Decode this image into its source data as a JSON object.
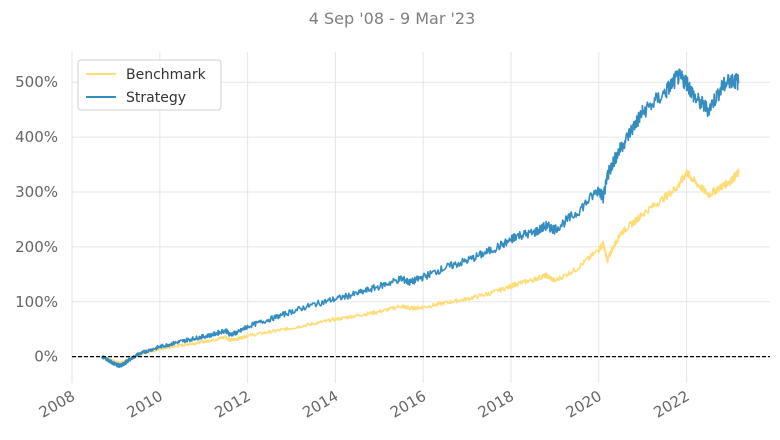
{
  "chart_data": {
    "type": "line",
    "subtitle": "4 Sep '08 -  9 Mar '23",
    "xlabel": "",
    "ylabel": "",
    "xlim": [
      2008.0,
      2023.9
    ],
    "ylim": [
      -48,
      555
    ],
    "y_ticks": [
      0,
      100,
      200,
      300,
      400,
      500
    ],
    "y_tick_labels": [
      "0%",
      "100%",
      "200%",
      "300%",
      "400%",
      "500%"
    ],
    "x_ticks": [
      2008,
      2010,
      2012,
      2014,
      2016,
      2018,
      2020,
      2022
    ],
    "x_tick_labels": [
      "2008",
      "2010",
      "2012",
      "2014",
      "2016",
      "2018",
      "2020",
      "2022"
    ],
    "grid": true,
    "legend_position": "top-left",
    "reference_line": {
      "y": 0,
      "style": "dashed",
      "color": "#000000"
    },
    "series": [
      {
        "name": "Benchmark",
        "color": "#fedd78",
        "x": [
          2008.68,
          2008.8,
          2008.9,
          2009.0,
          2009.1,
          2009.2,
          2009.3,
          2009.5,
          2009.7,
          2010.0,
          2010.3,
          2010.6,
          2010.9,
          2011.2,
          2011.5,
          2011.6,
          2011.8,
          2012.0,
          2012.5,
          2013.0,
          2013.5,
          2014.0,
          2014.5,
          2015.0,
          2015.5,
          2015.7,
          2016.0,
          2016.5,
          2017.0,
          2017.5,
          2018.0,
          2018.1,
          2018.5,
          2018.8,
          2019.0,
          2019.5,
          2020.0,
          2020.1,
          2020.2,
          2020.3,
          2020.5,
          2020.8,
          2021.0,
          2021.5,
          2021.8,
          2022.0,
          2022.2,
          2022.5,
          2022.8,
          2023.0,
          2023.19
        ],
        "y": [
          0,
          -4,
          -7,
          -10,
          -12,
          -8,
          -5,
          3,
          8,
          14,
          18,
          22,
          26,
          30,
          36,
          30,
          33,
          38,
          45,
          52,
          60,
          68,
          75,
          82,
          92,
          88,
          90,
          98,
          105,
          115,
          128,
          132,
          140,
          148,
          138,
          160,
          195,
          205,
          175,
          195,
          225,
          245,
          260,
          290,
          310,
          335,
          318,
          295,
          310,
          320,
          335
        ]
      },
      {
        "name": "Strategy",
        "color": "#348dc1",
        "x": [
          2008.68,
          2008.8,
          2008.9,
          2009.0,
          2009.1,
          2009.2,
          2009.3,
          2009.5,
          2009.7,
          2010.0,
          2010.3,
          2010.6,
          2010.9,
          2011.2,
          2011.5,
          2011.6,
          2011.8,
          2012.0,
          2012.5,
          2013.0,
          2013.5,
          2014.0,
          2014.5,
          2015.0,
          2015.5,
          2015.7,
          2016.0,
          2016.5,
          2017.0,
          2017.5,
          2018.0,
          2018.1,
          2018.5,
          2018.8,
          2019.0,
          2019.5,
          2020.0,
          2020.1,
          2020.2,
          2020.3,
          2020.5,
          2020.8,
          2021.0,
          2021.5,
          2021.8,
          2022.0,
          2022.2,
          2022.5,
          2022.8,
          2023.0,
          2023.19
        ],
        "y": [
          0,
          -5,
          -10,
          -14,
          -17,
          -12,
          -6,
          4,
          10,
          18,
          24,
          30,
          35,
          40,
          48,
          40,
          45,
          55,
          68,
          82,
          95,
          105,
          115,
          128,
          142,
          135,
          145,
          162,
          175,
          192,
          212,
          220,
          225,
          238,
          232,
          262,
          305,
          290,
          330,
          350,
          380,
          420,
          445,
          480,
          510,
          500,
          470,
          450,
          490,
          505,
          500
        ]
      }
    ]
  }
}
